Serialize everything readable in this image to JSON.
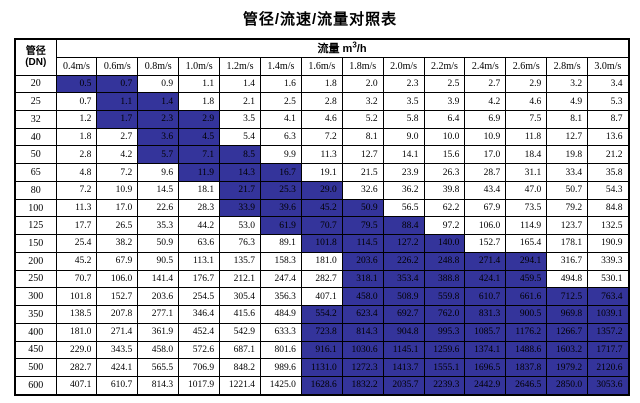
{
  "title": "管径/流速/流量对照表",
  "colors": {
    "highlight_blue": "#34349b",
    "border": "#000000",
    "background": "#ffffff"
  },
  "table": {
    "corner_line1": "管径",
    "corner_line2": "(DN)",
    "flow_label": "流量",
    "flow_unit_base": "m",
    "flow_unit_sup": "3",
    "flow_unit_rest": "/h",
    "velocities": [
      "0.4m/s",
      "0.6m/s",
      "0.8m/s",
      "1.0m/s",
      "1.2m/s",
      "1.4m/s",
      "1.6m/s",
      "1.8m/s",
      "2.0m/s",
      "2.2m/s",
      "2.4m/s",
      "2.6m/s",
      "2.8m/s",
      "3.0m/s"
    ],
    "rows": [
      {
        "dn": "20",
        "values": [
          "0.5",
          "0.7",
          "0.9",
          "1.1",
          "1.4",
          "1.6",
          "1.8",
          "2.0",
          "2.3",
          "2.5",
          "2.7",
          "2.9",
          "3.2",
          "3.4"
        ],
        "blue": [
          0,
          1
        ]
      },
      {
        "dn": "25",
        "values": [
          "0.7",
          "1.1",
          "1.4",
          "1.8",
          "2.1",
          "2.5",
          "2.8",
          "3.2",
          "3.5",
          "3.9",
          "4.2",
          "4.6",
          "4.9",
          "5.3"
        ],
        "blue": [
          1,
          2
        ]
      },
      {
        "dn": "32",
        "values": [
          "1.2",
          "1.7",
          "2.3",
          "2.9",
          "3.5",
          "4.1",
          "4.6",
          "5.2",
          "5.8",
          "6.4",
          "6.9",
          "7.5",
          "8.1",
          "8.7"
        ],
        "blue": [
          1,
          2,
          3
        ]
      },
      {
        "dn": "40",
        "values": [
          "1.8",
          "2.7",
          "3.6",
          "4.5",
          "5.4",
          "6.3",
          "7.2",
          "8.1",
          "9.0",
          "10.0",
          "10.9",
          "11.8",
          "12.7",
          "13.6"
        ],
        "blue": [
          2,
          3
        ]
      },
      {
        "dn": "50",
        "values": [
          "2.8",
          "4.2",
          "5.7",
          "7.1",
          "8.5",
          "9.9",
          "11.3",
          "12.7",
          "14.1",
          "15.6",
          "17.0",
          "18.4",
          "19.8",
          "21.2"
        ],
        "blue": [
          2,
          3,
          4
        ]
      },
      {
        "dn": "65",
        "values": [
          "4.8",
          "7.2",
          "9.6",
          "11.9",
          "14.3",
          "16.7",
          "19.1",
          "21.5",
          "23.9",
          "26.3",
          "28.7",
          "31.1",
          "33.4",
          "35.8"
        ],
        "blue": [
          3,
          4,
          5
        ]
      },
      {
        "dn": "80",
        "values": [
          "7.2",
          "10.9",
          "14.5",
          "18.1",
          "21.7",
          "25.3",
          "29.0",
          "32.6",
          "36.2",
          "39.8",
          "43.4",
          "47.0",
          "50.7",
          "54.3"
        ],
        "blue": [
          4,
          5,
          6
        ]
      },
      {
        "dn": "100",
        "values": [
          "11.3",
          "17.0",
          "22.6",
          "28.3",
          "33.9",
          "39.6",
          "45.2",
          "50.9",
          "56.5",
          "62.2",
          "67.9",
          "73.5",
          "79.2",
          "84.8"
        ],
        "blue": [
          4,
          5,
          6,
          7
        ]
      },
      {
        "dn": "125",
        "values": [
          "17.7",
          "26.5",
          "35.3",
          "44.2",
          "53.0",
          "61.9",
          "70.7",
          "79.5",
          "88.4",
          "97.2",
          "106.0",
          "114.9",
          "123.7",
          "132.5"
        ],
        "blue": [
          5,
          6,
          7,
          8
        ]
      },
      {
        "dn": "150",
        "values": [
          "25.4",
          "38.2",
          "50.9",
          "63.6",
          "76.3",
          "89.1",
          "101.8",
          "114.5",
          "127.2",
          "140.0",
          "152.7",
          "165.4",
          "178.1",
          "190.9"
        ],
        "blue": [
          6,
          7,
          8,
          9
        ]
      },
      {
        "dn": "200",
        "values": [
          "45.2",
          "67.9",
          "90.5",
          "113.1",
          "135.7",
          "158.3",
          "181.0",
          "203.6",
          "226.2",
          "248.8",
          "271.4",
          "294.1",
          "316.7",
          "339.3"
        ],
        "blue": [
          7,
          8,
          9,
          10,
          11
        ]
      },
      {
        "dn": "250",
        "values": [
          "70.7",
          "106.0",
          "141.4",
          "176.7",
          "212.1",
          "247.4",
          "282.7",
          "318.1",
          "353.4",
          "388.8",
          "424.1",
          "459.5",
          "494.8",
          "530.1"
        ],
        "blue": [
          7,
          8,
          9,
          10,
          11
        ]
      },
      {
        "dn": "300",
        "values": [
          "101.8",
          "152.7",
          "203.6",
          "254.5",
          "305.4",
          "356.3",
          "407.1",
          "458.0",
          "508.9",
          "559.8",
          "610.7",
          "661.6",
          "712.5",
          "763.4"
        ],
        "blue": [
          7,
          8,
          9,
          10,
          11,
          12,
          13
        ]
      },
      {
        "dn": "350",
        "values": [
          "138.5",
          "207.8",
          "277.1",
          "346.4",
          "415.6",
          "484.9",
          "554.2",
          "623.4",
          "692.7",
          "762.0",
          "831.3",
          "900.5",
          "969.8",
          "1039.1"
        ],
        "blue": [
          6,
          7,
          8,
          9,
          10,
          11,
          12,
          13
        ]
      },
      {
        "dn": "400",
        "values": [
          "181.0",
          "271.4",
          "361.9",
          "452.4",
          "542.9",
          "633.3",
          "723.8",
          "814.3",
          "904.8",
          "995.3",
          "1085.7",
          "1176.2",
          "1266.7",
          "1357.2"
        ],
        "blue": [
          6,
          7,
          8,
          9,
          10,
          11,
          12,
          13
        ]
      },
      {
        "dn": "450",
        "values": [
          "229.0",
          "343.5",
          "458.0",
          "572.6",
          "687.1",
          "801.6",
          "916.1",
          "1030.6",
          "1145.1",
          "1259.6",
          "1374.1",
          "1488.6",
          "1603.2",
          "1717.7"
        ],
        "blue": [
          6,
          7,
          8,
          9,
          10,
          11,
          12,
          13
        ]
      },
      {
        "dn": "500",
        "values": [
          "282.7",
          "424.1",
          "565.5",
          "706.9",
          "848.2",
          "989.6",
          "1131.0",
          "1272.3",
          "1413.7",
          "1555.1",
          "1696.5",
          "1837.8",
          "1979.2",
          "2120.6"
        ],
        "blue": [
          6,
          7,
          8,
          9,
          10,
          11,
          12,
          13
        ]
      },
      {
        "dn": "600",
        "values": [
          "407.1",
          "610.7",
          "814.3",
          "1017.9",
          "1221.4",
          "1425.0",
          "1628.6",
          "1832.2",
          "2035.7",
          "2239.3",
          "2442.9",
          "2646.5",
          "2850.0",
          "3053.6"
        ],
        "blue": [
          6,
          7,
          8,
          9,
          10,
          11,
          12,
          13
        ]
      }
    ]
  }
}
